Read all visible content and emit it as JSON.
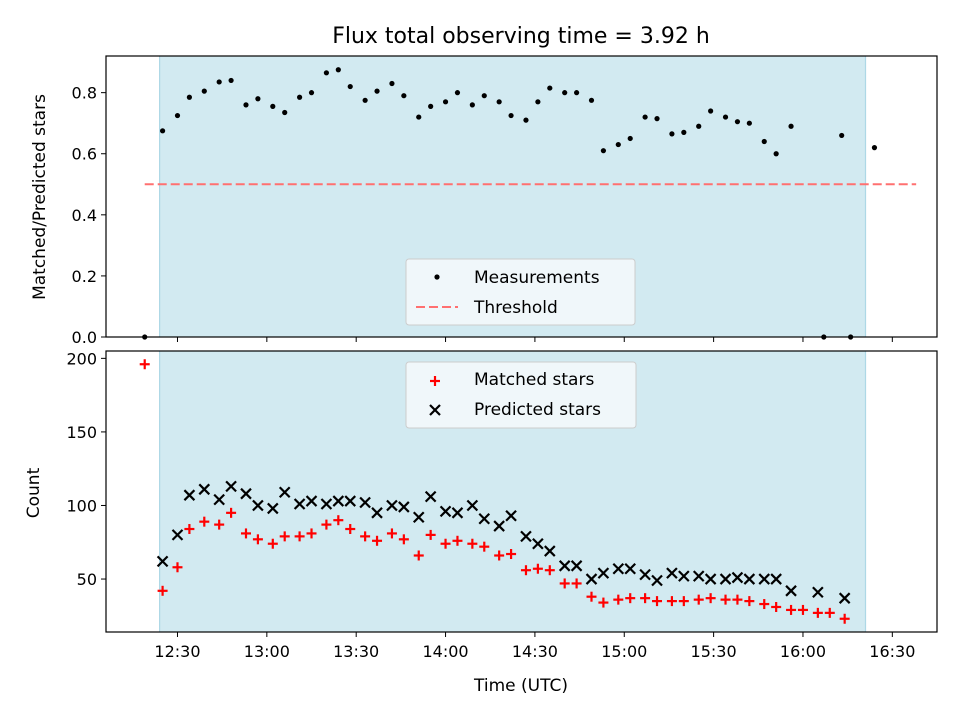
{
  "figure": {
    "title": "Flux total observing time = 3.92 h",
    "shade_color": "#add8e6",
    "x_range": [
      "12:06",
      "16:45"
    ],
    "shade_range": [
      "12:24",
      "16:21"
    ],
    "x_ticks": [
      "12:30",
      "13:00",
      "13:30",
      "14:00",
      "14:30",
      "15:00",
      "15:30",
      "16:00",
      "16:30"
    ],
    "x_label": "Time (UTC)"
  },
  "chart_data": [
    {
      "type": "scatter",
      "ylabel": "Matched/Predicted stars",
      "ylim": [
        0,
        0.92
      ],
      "y_ticks": [
        "0.0",
        "0.2",
        "0.4",
        "0.6",
        "0.8"
      ],
      "legend_position": "bottom-center",
      "legend": [
        "Measurements",
        "Threshold"
      ],
      "threshold": {
        "value": 0.5,
        "x_range": [
          "12:19",
          "16:38"
        ],
        "color": "#ff7070"
      },
      "series": [
        {
          "marker": "dot",
          "color": "#000000",
          "points": [
            [
              "12:19",
              0.0
            ],
            [
              "12:25",
              0.675
            ],
            [
              "12:30",
              0.725
            ],
            [
              "12:34",
              0.785
            ],
            [
              "12:39",
              0.805
            ],
            [
              "12:44",
              0.835
            ],
            [
              "12:48",
              0.84
            ],
            [
              "12:53",
              0.76
            ],
            [
              "12:57",
              0.78
            ],
            [
              "13:02",
              0.755
            ],
            [
              "13:06",
              0.735
            ],
            [
              "13:11",
              0.785
            ],
            [
              "13:15",
              0.8
            ],
            [
              "13:20",
              0.865
            ],
            [
              "13:24",
              0.875
            ],
            [
              "13:28",
              0.82
            ],
            [
              "13:33",
              0.775
            ],
            [
              "13:37",
              0.805
            ],
            [
              "13:42",
              0.83
            ],
            [
              "13:46",
              0.79
            ],
            [
              "13:51",
              0.72
            ],
            [
              "13:55",
              0.755
            ],
            [
              "14:00",
              0.77
            ],
            [
              "14:04",
              0.8
            ],
            [
              "14:09",
              0.76
            ],
            [
              "14:13",
              0.79
            ],
            [
              "14:18",
              0.77
            ],
            [
              "14:22",
              0.725
            ],
            [
              "14:27",
              0.71
            ],
            [
              "14:31",
              0.77
            ],
            [
              "14:35",
              0.815
            ],
            [
              "14:40",
              0.8
            ],
            [
              "14:44",
              0.8
            ],
            [
              "14:49",
              0.775
            ],
            [
              "14:53",
              0.61
            ],
            [
              "14:58",
              0.63
            ],
            [
              "15:02",
              0.65
            ],
            [
              "15:07",
              0.72
            ],
            [
              "15:11",
              0.715
            ],
            [
              "15:16",
              0.665
            ],
            [
              "15:20",
              0.67
            ],
            [
              "15:25",
              0.69
            ],
            [
              "15:29",
              0.74
            ],
            [
              "15:34",
              0.72
            ],
            [
              "15:38",
              0.705
            ],
            [
              "15:42",
              0.7
            ],
            [
              "15:47",
              0.64
            ],
            [
              "15:51",
              0.6
            ],
            [
              "15:56",
              0.69
            ],
            [
              "16:07",
              0.0
            ],
            [
              "16:13",
              0.66
            ],
            [
              "16:16",
              0.0
            ],
            [
              "16:24",
              0.62
            ]
          ]
        }
      ]
    },
    {
      "type": "scatter",
      "ylabel": "Count",
      "ylim": [
        14,
        205
      ],
      "y_ticks": [
        "50",
        "100",
        "150",
        "200"
      ],
      "legend_position": "top-center",
      "legend": [
        "Matched stars",
        "Predicted stars"
      ],
      "series": [
        {
          "name": "Matched stars",
          "marker": "plus",
          "color": "#ff0000",
          "points": [
            [
              "12:19",
              196
            ],
            [
              "12:25",
              42
            ],
            [
              "12:30",
              58
            ],
            [
              "12:34",
              84
            ],
            [
              "12:39",
              89
            ],
            [
              "12:44",
              87
            ],
            [
              "12:48",
              95
            ],
            [
              "12:53",
              81
            ],
            [
              "12:57",
              77
            ],
            [
              "13:02",
              74
            ],
            [
              "13:06",
              79
            ],
            [
              "13:11",
              79
            ],
            [
              "13:15",
              81
            ],
            [
              "13:20",
              87
            ],
            [
              "13:24",
              90
            ],
            [
              "13:28",
              84
            ],
            [
              "13:33",
              79
            ],
            [
              "13:37",
              76
            ],
            [
              "13:42",
              81
            ],
            [
              "13:46",
              77
            ],
            [
              "13:51",
              66
            ],
            [
              "13:55",
              80
            ],
            [
              "14:00",
              74
            ],
            [
              "14:04",
              76
            ],
            [
              "14:09",
              74
            ],
            [
              "14:13",
              72
            ],
            [
              "14:18",
              66
            ],
            [
              "14:22",
              67
            ],
            [
              "14:27",
              56
            ],
            [
              "14:31",
              57
            ],
            [
              "14:35",
              56
            ],
            [
              "14:40",
              47
            ],
            [
              "14:44",
              47
            ],
            [
              "14:49",
              38
            ],
            [
              "14:53",
              34
            ],
            [
              "14:58",
              36
            ],
            [
              "15:02",
              37
            ],
            [
              "15:07",
              37
            ],
            [
              "15:11",
              35
            ],
            [
              "15:16",
              35
            ],
            [
              "15:20",
              35
            ],
            [
              "15:25",
              36
            ],
            [
              "15:29",
              37
            ],
            [
              "15:34",
              36
            ],
            [
              "15:38",
              36
            ],
            [
              "15:42",
              35
            ],
            [
              "15:47",
              33
            ],
            [
              "15:51",
              31
            ],
            [
              "15:56",
              29
            ],
            [
              "16:00",
              29
            ],
            [
              "16:05",
              27
            ],
            [
              "16:09",
              27
            ],
            [
              "16:14",
              23
            ]
          ]
        },
        {
          "name": "Predicted stars",
          "marker": "x",
          "color": "#000000",
          "points": [
            [
              "12:25",
              62
            ],
            [
              "12:30",
              80
            ],
            [
              "12:34",
              107
            ],
            [
              "12:39",
              111
            ],
            [
              "12:44",
              104
            ],
            [
              "12:48",
              113
            ],
            [
              "12:53",
              108
            ],
            [
              "12:57",
              100
            ],
            [
              "13:02",
              98
            ],
            [
              "13:06",
              109
            ],
            [
              "13:11",
              101
            ],
            [
              "13:15",
              103
            ],
            [
              "13:20",
              101
            ],
            [
              "13:24",
              103
            ],
            [
              "13:28",
              103
            ],
            [
              "13:33",
              102
            ],
            [
              "13:37",
              95
            ],
            [
              "13:42",
              100
            ],
            [
              "13:46",
              99
            ],
            [
              "13:51",
              92
            ],
            [
              "13:55",
              106
            ],
            [
              "14:00",
              96
            ],
            [
              "14:04",
              95
            ],
            [
              "14:09",
              100
            ],
            [
              "14:13",
              91
            ],
            [
              "14:18",
              86
            ],
            [
              "14:22",
              93
            ],
            [
              "14:27",
              79
            ],
            [
              "14:31",
              74
            ],
            [
              "14:35",
              69
            ],
            [
              "14:40",
              59
            ],
            [
              "14:44",
              59
            ],
            [
              "14:49",
              50
            ],
            [
              "14:53",
              54
            ],
            [
              "14:58",
              57
            ],
            [
              "15:02",
              57
            ],
            [
              "15:07",
              53
            ],
            [
              "15:11",
              49
            ],
            [
              "15:16",
              54
            ],
            [
              "15:20",
              52
            ],
            [
              "15:25",
              52
            ],
            [
              "15:29",
              50
            ],
            [
              "15:34",
              50
            ],
            [
              "15:38",
              51
            ],
            [
              "15:42",
              50
            ],
            [
              "15:47",
              50
            ],
            [
              "15:51",
              50
            ],
            [
              "15:56",
              42
            ],
            [
              "16:05",
              41
            ],
            [
              "16:14",
              37
            ]
          ]
        }
      ]
    }
  ]
}
